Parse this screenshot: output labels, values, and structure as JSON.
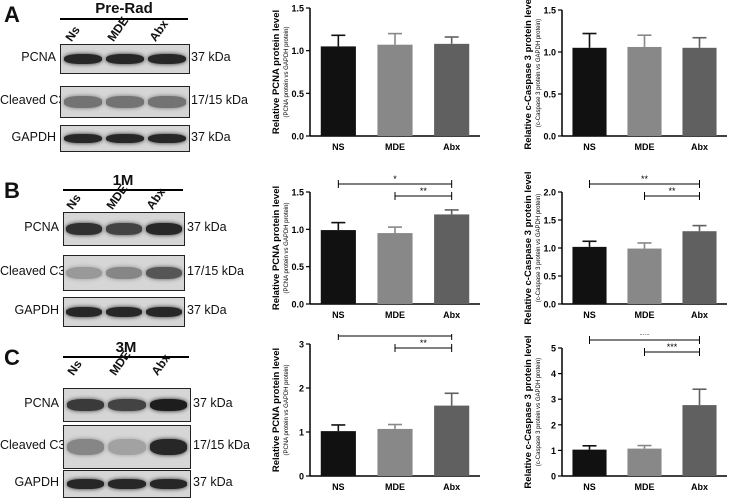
{
  "panels": [
    {
      "letter": "A",
      "blot": {
        "title": "Pre-Rad",
        "lanes": [
          "Ns",
          "MDE",
          "Abx"
        ],
        "rows": [
          {
            "label": "PCNA",
            "kda": "37 kDa",
            "intensity": [
              0.85,
              0.85,
              0.85
            ]
          },
          {
            "label": "Cleaved C3",
            "kda": "17/15 kDa",
            "intensity": [
              0.45,
              0.45,
              0.45
            ]
          },
          {
            "label": "GAPDH",
            "kda": "37 kDa",
            "intensity": [
              0.85,
              0.85,
              0.85
            ]
          }
        ]
      }
    },
    {
      "letter": "B",
      "blot": {
        "title": "1M",
        "lanes": [
          "Ns",
          "MDE",
          "Abx"
        ],
        "rows": [
          {
            "label": "PCNA",
            "kda": "37 kDa",
            "intensity": [
              0.8,
              0.7,
              0.85
            ]
          },
          {
            "label": "Cleaved C3",
            "kda": "17/15 kDa",
            "intensity": [
              0.25,
              0.35,
              0.6
            ]
          },
          {
            "label": "GAPDH",
            "kda": "37 kDa",
            "intensity": [
              0.85,
              0.85,
              0.85
            ]
          }
        ]
      }
    },
    {
      "letter": "C",
      "blot": {
        "title": "3M",
        "lanes": [
          "Ns",
          "MDE",
          "Abx"
        ],
        "rows": [
          {
            "label": "PCNA",
            "kda": "37 kDa",
            "intensity": [
              0.75,
              0.7,
              0.9
            ]
          },
          {
            "label": "Cleaved C3",
            "kda": "17/15 kDa",
            "intensity": [
              0.35,
              0.2,
              0.85
            ]
          },
          {
            "label": "GAPDH",
            "kda": "37 kDa",
            "intensity": [
              0.85,
              0.85,
              0.85
            ]
          }
        ]
      }
    }
  ],
  "chart_data": [
    {
      "type": "bar",
      "panel": "A",
      "ylabel": "Relative PCNA protein level",
      "ysublabel": "(PCNA protein vs GAPDH protein)",
      "categories": [
        "NS",
        "MDE",
        "Abx"
      ],
      "values": [
        1.05,
        1.07,
        1.08
      ],
      "errors": [
        0.13,
        0.13,
        0.08
      ],
      "ylim": [
        0,
        1.5
      ],
      "yticks": [
        "0.0",
        "0.5",
        "1.0",
        "1.5"
      ],
      "colors": [
        "#111111",
        "#888888",
        "#606060"
      ],
      "significance": []
    },
    {
      "type": "bar",
      "panel": "A",
      "ylabel": "Relative c-Caspase 3 protein level",
      "ysublabel": "(c-Caspase 3 protein vs GAPDH protein)",
      "categories": [
        "NS",
        "MDE",
        "Abx"
      ],
      "values": [
        1.05,
        1.06,
        1.05
      ],
      "errors": [
        0.17,
        0.14,
        0.12
      ],
      "ylim": [
        0,
        1.5
      ],
      "yticks": [
        "0.0",
        "0.5",
        "1.0",
        "1.5"
      ],
      "colors": [
        "#111111",
        "#888888",
        "#606060"
      ],
      "significance": []
    },
    {
      "type": "bar",
      "panel": "B",
      "ylabel": "Relative PCNA protein level",
      "ysublabel": "(PCNA protein vs GAPDH protein)",
      "categories": [
        "NS",
        "MDE",
        "Abx"
      ],
      "values": [
        0.99,
        0.95,
        1.2
      ],
      "errors": [
        0.1,
        0.08,
        0.06
      ],
      "ylim": [
        0,
        1.5
      ],
      "yticks": [
        "0.0",
        "0.5",
        "1.0",
        "1.5"
      ],
      "colors": [
        "#111111",
        "#888888",
        "#606060"
      ],
      "significance": [
        {
          "from": 0,
          "to": 2,
          "label": "*"
        },
        {
          "from": 1,
          "to": 2,
          "label": "**"
        }
      ]
    },
    {
      "type": "bar",
      "panel": "B",
      "ylabel": "Relative c-Caspase 3 protein level",
      "ysublabel": "(c-Caspase 3 protein vs GAPDH protein)",
      "categories": [
        "NS",
        "MDE",
        "Abx"
      ],
      "values": [
        1.02,
        0.99,
        1.3
      ],
      "errors": [
        0.1,
        0.1,
        0.1
      ],
      "ylim": [
        0,
        2.0
      ],
      "yticks": [
        "0.0",
        "0.5",
        "1.0",
        "1.5",
        "2.0"
      ],
      "colors": [
        "#111111",
        "#888888",
        "#606060"
      ],
      "significance": [
        {
          "from": 0,
          "to": 2,
          "label": "**"
        },
        {
          "from": 1,
          "to": 2,
          "label": "**"
        }
      ]
    },
    {
      "type": "bar",
      "panel": "C",
      "ylabel": "Relative PCNA protein level",
      "ysublabel": "(PCNA protein vs GAPDH protein)",
      "categories": [
        "NS",
        "MDE",
        "Abx"
      ],
      "values": [
        1.02,
        1.07,
        1.6
      ],
      "errors": [
        0.14,
        0.1,
        0.28
      ],
      "ylim": [
        0,
        3
      ],
      "yticks": [
        "0",
        "1",
        "2",
        "3"
      ],
      "colors": [
        "#111111",
        "#888888",
        "#606060"
      ],
      "significance": [
        {
          "from": 0,
          "to": 2,
          "label": "**"
        },
        {
          "from": 1,
          "to": 2,
          "label": "**"
        }
      ]
    },
    {
      "type": "bar",
      "panel": "C",
      "ylabel": "Relative c-Caspase 3 protein level",
      "ysublabel": "(c-Caspase 3 protein vs GAPDH protein)",
      "categories": [
        "NS",
        "MDE",
        "Abx"
      ],
      "values": [
        1.03,
        1.07,
        2.77
      ],
      "errors": [
        0.15,
        0.12,
        0.62
      ],
      "ylim": [
        0,
        5
      ],
      "yticks": [
        "0",
        "1",
        "2",
        "3",
        "4",
        "5"
      ],
      "colors": [
        "#111111",
        "#888888",
        "#606060"
      ],
      "significance": [
        {
          "from": 0,
          "to": 2,
          "label": "***"
        },
        {
          "from": 1,
          "to": 2,
          "label": "***"
        }
      ]
    }
  ]
}
